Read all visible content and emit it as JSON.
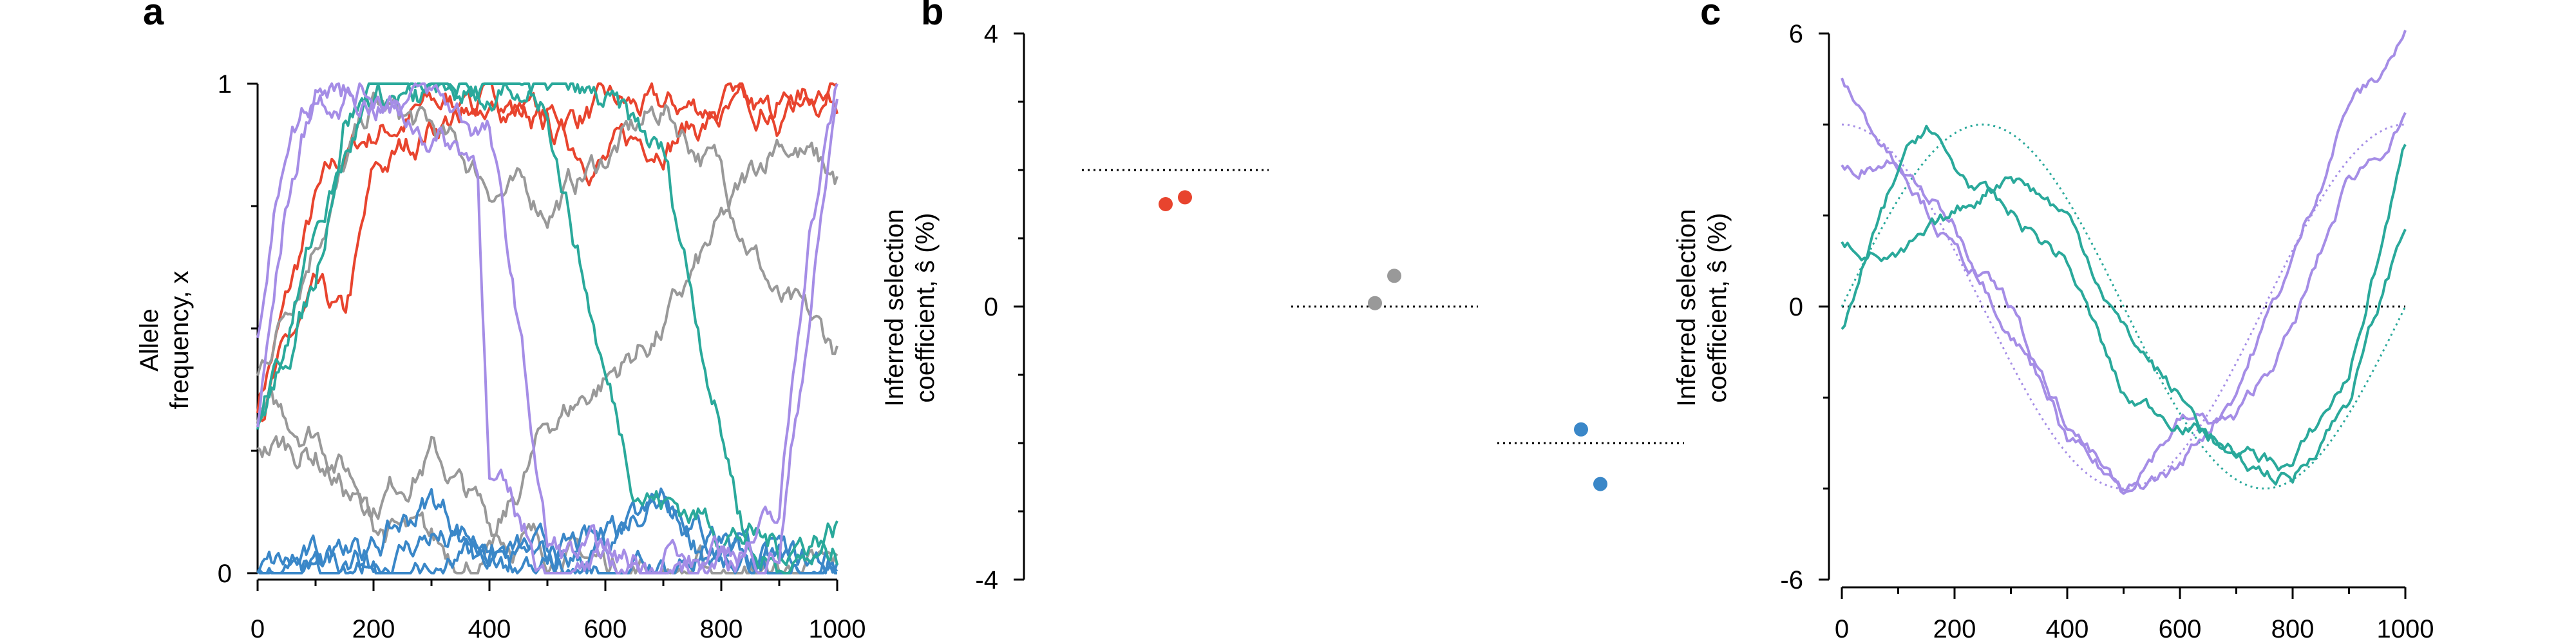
{
  "panels": {
    "a": {
      "letter": "a",
      "ylabel_line1": "Allele",
      "ylabel_line2": "frequency, x"
    },
    "b": {
      "letter": "b",
      "ylabel_line1": "Inferred selection",
      "ylabel_line2": "coefficient, ŝ (%)"
    },
    "c": {
      "letter": "c",
      "ylabel_line1": "Inferred selection",
      "ylabel_line2": "coefficient, ŝ (%)"
    }
  },
  "colors": {
    "red": "#e8442e",
    "gray": "#999999",
    "blue": "#3a87c8",
    "teal": "#2aa99b",
    "purple": "#a58de6",
    "axis": "#000000"
  },
  "chart_data": [
    {
      "panel": "a",
      "type": "line",
      "xlabel": "",
      "ylabel": "Allele frequency, x",
      "xlim": [
        0,
        1000
      ],
      "ylim": [
        0,
        1
      ],
      "x_ticks": [
        "0",
        "200",
        "400",
        "600",
        "800",
        "1000"
      ],
      "y_ticks": [
        "0",
        "1"
      ],
      "series": [
        {
          "color": "red",
          "x": [
            0,
            50,
            100,
            150,
            200,
            300,
            400,
            500,
            600,
            700,
            800,
            900,
            1000
          ],
          "values": [
            0.35,
            0.55,
            0.75,
            0.85,
            0.9,
            0.95,
            0.97,
            0.93,
            0.95,
            0.94,
            0.96,
            0.97,
            0.98
          ]
        },
        {
          "color": "red",
          "x": [
            0,
            50,
            100,
            150,
            200,
            300,
            400,
            500,
            600,
            700,
            800,
            900,
            1000
          ],
          "values": [
            0.33,
            0.45,
            0.55,
            0.5,
            0.8,
            0.92,
            0.96,
            0.9,
            0.85,
            0.9,
            0.93,
            0.92,
            0.99
          ]
        },
        {
          "color": "gray",
          "x": [
            0,
            100,
            200,
            300,
            400,
            500,
            600,
            700,
            800,
            900,
            1000
          ],
          "values": [
            0.4,
            0.7,
            0.95,
            0.9,
            0.8,
            0.75,
            0.85,
            0.95,
            0.82,
            0.55,
            0.45
          ]
        },
        {
          "color": "gray",
          "x": [
            0,
            100,
            200,
            300,
            400,
            500,
            600,
            700,
            800,
            900,
            1000
          ],
          "values": [
            0.33,
            0.3,
            0.15,
            0.25,
            0.1,
            0.05,
            0.02,
            0.01,
            0.0,
            0.0,
            0.0
          ]
        },
        {
          "color": "gray",
          "x": [
            0,
            100,
            200,
            300,
            400,
            500,
            600,
            700,
            800,
            900,
            1000
          ],
          "values": [
            0.27,
            0.25,
            0.1,
            0.05,
            0.02,
            0.3,
            0.4,
            0.5,
            0.7,
            0.9,
            0.8
          ]
        },
        {
          "color": "blue",
          "x": [
            0,
            100,
            200,
            300,
            400,
            500,
            600,
            700,
            800,
            900,
            1000
          ],
          "values": [
            0.0,
            0.02,
            0.05,
            0.15,
            0.05,
            0.03,
            0.06,
            0.2,
            0.04,
            0.02,
            0.01
          ]
        },
        {
          "color": "blue",
          "x": [
            0,
            100,
            200,
            300,
            400,
            500,
            600,
            700,
            800,
            900,
            1000
          ],
          "values": [
            0.0,
            0.01,
            0.02,
            0.08,
            0.01,
            0.0,
            0.05,
            0.12,
            0.03,
            0.01,
            0.02
          ]
        },
        {
          "color": "blue",
          "x": [
            0,
            100,
            200,
            300,
            400,
            500,
            600,
            700,
            800,
            900,
            1000
          ],
          "values": [
            0.0,
            0.0,
            0.01,
            0.0,
            0.02,
            0.01,
            0.0,
            0.01,
            0.05,
            0.02,
            0.03
          ]
        },
        {
          "color": "teal",
          "x": [
            0,
            100,
            150,
            200,
            300,
            400,
            500,
            600,
            650,
            700,
            800,
            900,
            1000
          ],
          "values": [
            0.3,
            0.6,
            0.95,
            0.98,
            0.97,
            0.98,
            0.96,
            0.4,
            0.2,
            0.15,
            0.1,
            0.05,
            0.1
          ]
        },
        {
          "color": "teal",
          "x": [
            0,
            100,
            200,
            300,
            400,
            500,
            600,
            700,
            800,
            850,
            900,
            1000
          ],
          "values": [
            0.3,
            0.7,
            0.99,
            0.97,
            0.98,
            0.98,
            0.95,
            0.85,
            0.3,
            0.05,
            0.02,
            0.03
          ]
        },
        {
          "color": "purple",
          "x": [
            0,
            50,
            100,
            200,
            300,
            400,
            450,
            500,
            600,
            700,
            800,
            900,
            1000
          ],
          "values": [
            0.5,
            0.9,
            0.99,
            0.99,
            0.97,
            0.9,
            0.5,
            0.05,
            0.02,
            0.01,
            0.02,
            0.05,
            0.97
          ]
        },
        {
          "color": "purple",
          "x": [
            0,
            50,
            100,
            200,
            300,
            380,
            400,
            500,
            600,
            700,
            800,
            900,
            950,
            1000
          ],
          "values": [
            0.3,
            0.75,
            0.99,
            0.97,
            0.9,
            0.85,
            0.2,
            0.0,
            0.0,
            0.02,
            0.05,
            0.1,
            0.7,
            0.99
          ]
        }
      ]
    },
    {
      "panel": "b",
      "type": "scatter",
      "ylabel": "Inferred selection coefficient, ŝ (%)",
      "ylim": [
        -4,
        4
      ],
      "y_ticks": [
        "-4",
        "0",
        "4"
      ],
      "groups": [
        {
          "color": "red",
          "true_value": 2.0,
          "points": [
            1.5,
            1.6
          ]
        },
        {
          "color": "gray",
          "true_value": 0.0,
          "points": [
            0.05,
            0.45
          ]
        },
        {
          "color": "blue",
          "true_value": -2.0,
          "points": [
            -1.8,
            -2.6
          ]
        }
      ]
    },
    {
      "panel": "c",
      "type": "line",
      "xlabel": "",
      "ylabel": "Inferred selection coefficient, ŝ (%)",
      "xlim": [
        0,
        1000
      ],
      "ylim": [
        -6,
        6
      ],
      "x_ticks": [
        "0",
        "200",
        "400",
        "600",
        "800",
        "1000"
      ],
      "y_ticks": [
        "-6",
        "0",
        "6"
      ],
      "true_curves": [
        {
          "color": "purple",
          "amplitude": 4,
          "phase": 0
        },
        {
          "color": "teal",
          "amplitude": 4,
          "phase": 250
        }
      ],
      "series": [
        {
          "color": "purple",
          "x": [
            0,
            100,
            200,
            300,
            400,
            500,
            600,
            700,
            800,
            900,
            950,
            1000
          ],
          "values": [
            5.0,
            3.0,
            1.8,
            -0.5,
            -2.5,
            -4.2,
            -3.5,
            -1.8,
            1.0,
            4.5,
            5.0,
            6.0
          ]
        },
        {
          "color": "purple",
          "x": [
            0,
            100,
            200,
            300,
            400,
            500,
            600,
            700,
            800,
            900,
            1000
          ],
          "values": [
            3.0,
            3.3,
            1.2,
            0.0,
            -3.0,
            -4.0,
            -2.5,
            -2.5,
            -0.5,
            2.8,
            4.0
          ]
        },
        {
          "color": "teal",
          "x": [
            0,
            100,
            150,
            200,
            300,
            400,
            500,
            600,
            700,
            800,
            900,
            1000
          ],
          "values": [
            -0.5,
            3.0,
            4.0,
            3.0,
            2.0,
            1.0,
            -2.0,
            -2.5,
            -3.2,
            -3.5,
            -1.5,
            3.5
          ]
        },
        {
          "color": "teal",
          "x": [
            0,
            100,
            200,
            300,
            400,
            500,
            600,
            700,
            800,
            900,
            1000
          ],
          "values": [
            1.5,
            1.0,
            2.0,
            3.0,
            2.0,
            -0.5,
            -2.0,
            -3.5,
            -3.8,
            -2.0,
            1.8
          ]
        }
      ]
    }
  ]
}
